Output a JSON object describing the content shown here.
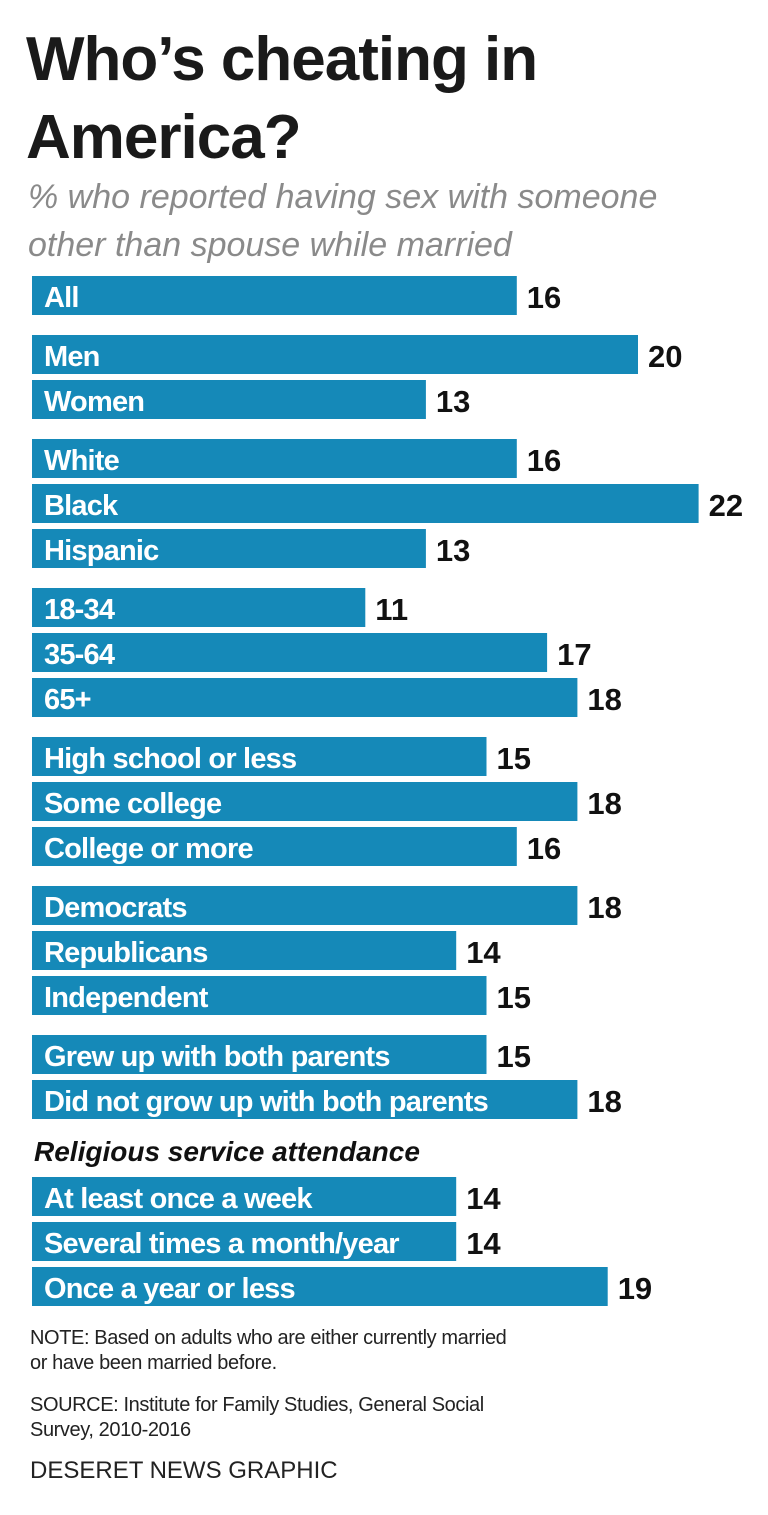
{
  "chart_data": {
    "type": "bar",
    "orientation": "horizontal",
    "title": [
      "Who’s cheating in",
      "America?"
    ],
    "subtitle": [
      "% who reported having sex with someone",
      "other than spouse while married"
    ],
    "color": "#1589b8",
    "groups": [
      {
        "categories": [
          "All"
        ],
        "values": [
          16
        ]
      },
      {
        "categories": [
          "Men",
          "Women"
        ],
        "values": [
          20,
          13
        ]
      },
      {
        "categories": [
          "White",
          "Black",
          "Hispanic"
        ],
        "values": [
          16,
          22,
          13
        ]
      },
      {
        "categories": [
          "18-34",
          "35-64",
          "65+"
        ],
        "values": [
          11,
          17,
          18
        ]
      },
      {
        "categories": [
          "High school or less",
          "Some college",
          "College or more"
        ],
        "values": [
          15,
          18,
          16
        ]
      },
      {
        "categories": [
          "Democrats",
          "Republicans",
          "Independent"
        ],
        "values": [
          18,
          14,
          15
        ]
      },
      {
        "categories": [
          "Grew up with both parents",
          "Did not grow up with both parents"
        ],
        "values": [
          15,
          18
        ]
      },
      {
        "label": "Religious service attendance",
        "categories": [
          "At least once a week",
          "Several times a month/year",
          "Once a year or less"
        ],
        "values": [
          14,
          14,
          19
        ]
      }
    ],
    "note": [
      "NOTE: Based on adults who are either currently married",
      "or have been married before."
    ],
    "source": [
      "SOURCE: Institute for Family Studies, General Social",
      "Survey, 2010-2016"
    ],
    "credit": "DESERET NEWS GRAPHIC"
  }
}
